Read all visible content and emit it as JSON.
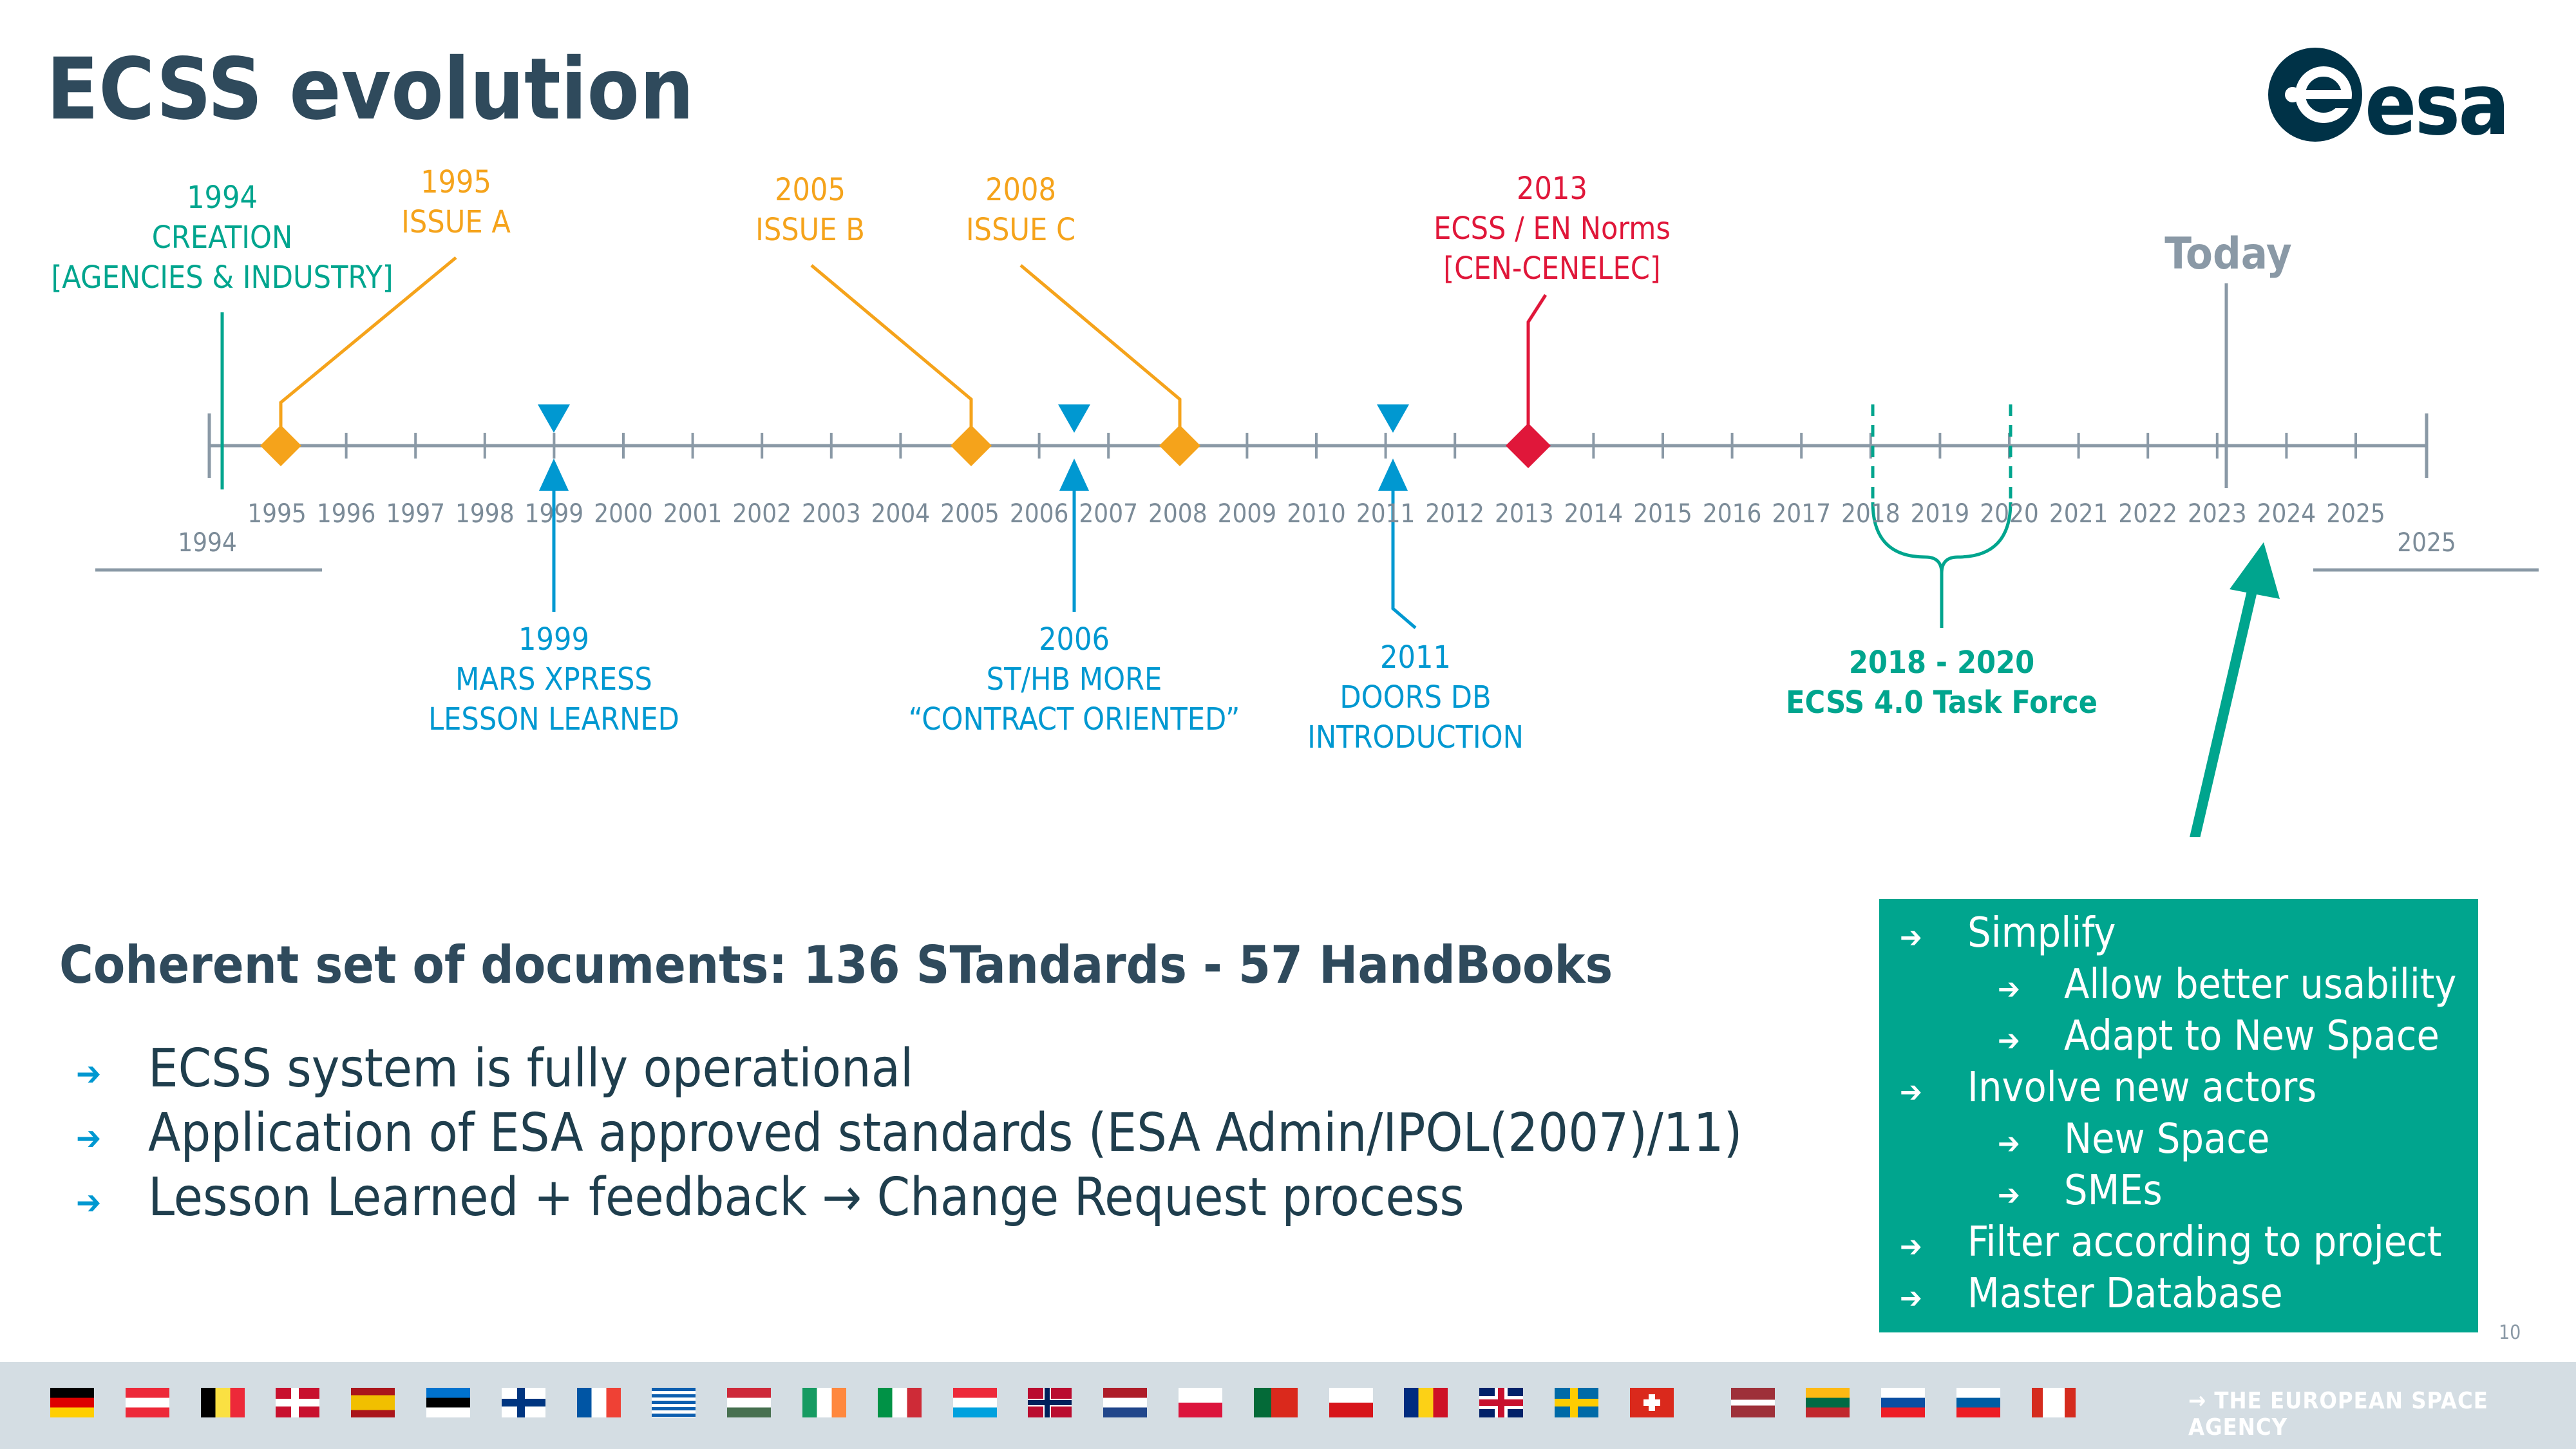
{
  "title": "ECSS evolution",
  "logo_text": "esa",
  "timeline": {
    "start_label": "1994",
    "end_label": "2025",
    "ticks": [
      "1995",
      "1996",
      "1997",
      "1998",
      "1999",
      "2000",
      "2001",
      "2002",
      "2003",
      "2004",
      "2005",
      "2006",
      "2007",
      "2008",
      "2009",
      "2010",
      "2011",
      "2012",
      "2013",
      "2014",
      "2015",
      "2016",
      "2017",
      "2018",
      "2019",
      "2020",
      "2021",
      "2022",
      "2023",
      "2024",
      "2025"
    ],
    "today_label": "Today",
    "events_above": [
      {
        "year": "1994",
        "lines": [
          "CREATION",
          "[AGENCIES & INDUSTRY]"
        ]
      },
      {
        "year": "1995",
        "lines": [
          "ISSUE A"
        ]
      },
      {
        "year": "2005",
        "lines": [
          "ISSUE B"
        ]
      },
      {
        "year": "2008",
        "lines": [
          "ISSUE C"
        ]
      },
      {
        "year": "2013",
        "lines": [
          "ECSS / EN Norms",
          "[CEN-CENELEC]"
        ]
      }
    ],
    "events_below": [
      {
        "year": "1999",
        "lines": [
          "MARS XPRESS",
          "LESSON LEARNED"
        ]
      },
      {
        "year": "2006",
        "lines": [
          "ST/HB MORE",
          "“CONTRACT ORIENTED”"
        ]
      },
      {
        "year": "2011",
        "lines": [
          "DOORS DB",
          "INTRODUCTION"
        ]
      },
      {
        "year": "2018 - 2020",
        "lines": [
          "ECSS 4.0 Task Force"
        ]
      }
    ]
  },
  "summary": "Coherent set of documents: 136 STandards - 57 HandBooks",
  "bullets": [
    "ECSS system is fully operational",
    "Application of ESA approved standards (ESA Admin/IPOL(2007)/11)",
    "Lesson Learned + feedback → Change Request process"
  ],
  "green_box": {
    "items": [
      {
        "text": "Simplify",
        "level": 1
      },
      {
        "text": "Allow better usability",
        "level": 2
      },
      {
        "text": "Adapt to New Space",
        "level": 2
      },
      {
        "text": "Involve new actors",
        "level": 1
      },
      {
        "text": "New Space",
        "level": 2
      },
      {
        "text": "SMEs",
        "level": 2
      },
      {
        "text": "Filter according to project",
        "level": 1
      },
      {
        "text": "Master Database",
        "level": 1
      }
    ]
  },
  "page_number": "10",
  "footer_text": "→ THE EUROPEAN SPACE AGENCY",
  "colors": {
    "teal": "#00a58e",
    "orange": "#f5a31b",
    "red": "#e0173a",
    "blue": "#0098d1",
    "navy": "#2f4a5c",
    "footer": "#d4dde3"
  },
  "flags": [
    "germany",
    "austria",
    "belgium",
    "denmark",
    "spain",
    "estonia",
    "finland",
    "france",
    "greece",
    "hungary",
    "ireland",
    "italy",
    "luxembourg",
    "norway",
    "netherlands",
    "poland",
    "portugal",
    "czech-republic",
    "romania",
    "united-kingdom",
    "sweden",
    "switzerland",
    "latvia",
    "lithuania",
    "slovakia",
    "slovenia",
    "canada"
  ]
}
